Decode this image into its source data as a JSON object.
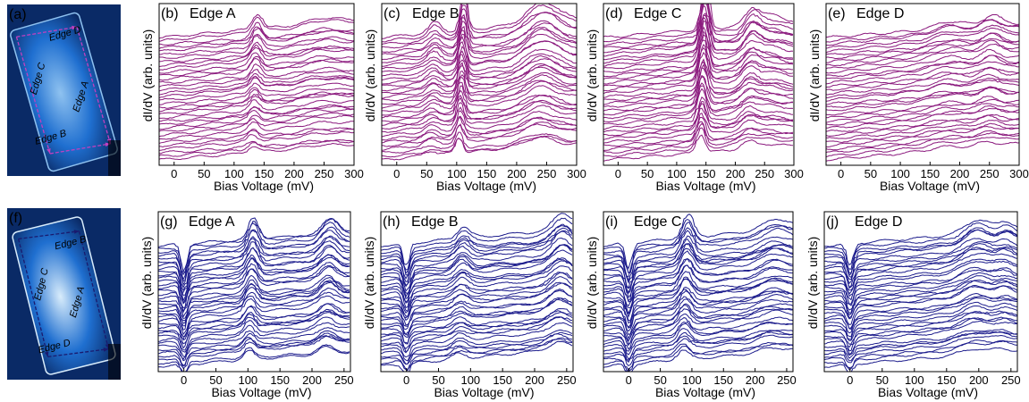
{
  "chart_data": [
    {
      "panel": "(a)",
      "type": "image",
      "kind": "stm-topograph",
      "colors": [
        "#0a2a66",
        "#1f6fd0",
        "#8fc2f0"
      ],
      "annotations": [
        "Edge A",
        "Edge B",
        "Edge C",
        "Edge D"
      ],
      "arrow_color": "#c040c0"
    },
    {
      "panel": "(b)",
      "type": "line",
      "title": "Edge A",
      "xlabel": "Bias Voltage (mV)",
      "ylabel": "dI/dV (arb. units)",
      "xlim": [
        -25,
        300
      ],
      "xticks": [
        0,
        50,
        100,
        150,
        200,
        250,
        300
      ],
      "n_series": 36,
      "color": "#8b1a7e",
      "features": [
        {
          "bias_mV": 135,
          "amp": 0.9,
          "width": 8
        },
        {
          "bias_mV": 245,
          "amp": 0.3,
          "width": 25
        }
      ]
    },
    {
      "panel": "(c)",
      "type": "line",
      "title": "Edge B",
      "xlabel": "Bias Voltage (mV)",
      "ylabel": "dI/dV (arb. units)",
      "xlim": [
        -25,
        300
      ],
      "xticks": [
        0,
        50,
        100,
        150,
        200,
        250,
        300
      ],
      "n_series": 36,
      "color": "#8b1a7e",
      "features": [
        {
          "bias_mV": 108,
          "amp": 2.0,
          "width": 6
        },
        {
          "bias_mV": 60,
          "amp": 0.6,
          "width": 10
        },
        {
          "bias_mV": 240,
          "amp": 1.2,
          "width": 25
        }
      ]
    },
    {
      "panel": "(d)",
      "type": "line",
      "title": "Edge C",
      "xlabel": "Bias Voltage (mV)",
      "ylabel": "dI/dV (arb. units)",
      "xlim": [
        -25,
        300
      ],
      "xticks": [
        0,
        50,
        100,
        150,
        200,
        250,
        300
      ],
      "n_series": 36,
      "color": "#8b1a7e",
      "features": [
        {
          "bias_mV": 145,
          "amp": 2.6,
          "width": 7
        },
        {
          "bias_mV": 225,
          "amp": 0.9,
          "width": 12
        },
        {
          "bias_mV": 255,
          "amp": 0.5,
          "width": 20
        }
      ]
    },
    {
      "panel": "(e)",
      "type": "line",
      "title": "Edge D",
      "xlabel": "Bias Voltage (mV)",
      "ylabel": "dI/dV (arb. units)",
      "xlim": [
        -25,
        300
      ],
      "xticks": [
        0,
        50,
        100,
        150,
        200,
        250,
        300
      ],
      "n_series": 36,
      "color": "#8b1a7e",
      "features": [
        {
          "bias_mV": 180,
          "amp": 0.4,
          "width": 25
        },
        {
          "bias_mV": 250,
          "amp": 0.6,
          "width": 15
        }
      ]
    },
    {
      "panel": "(f)",
      "type": "image",
      "kind": "stm-topograph",
      "colors": [
        "#0a2a66",
        "#1f6fd0",
        "#d8ecfb"
      ],
      "annotations": [
        "Edge A",
        "Edge B",
        "Edge C",
        "Edge D"
      ],
      "arrow_color": "#1a1a6e"
    },
    {
      "panel": "(g)",
      "type": "line",
      "title": "Edge A",
      "xlabel": "Bias Voltage (mV)",
      "ylabel": "dI/dV (arb. units)",
      "xlim": [
        -40,
        260
      ],
      "xticks": [
        0,
        50,
        100,
        150,
        200,
        250
      ],
      "n_series": 38,
      "color": "#1c1c8c",
      "features": [
        {
          "bias_mV": 0,
          "amp": -1.6,
          "width": 5
        },
        {
          "bias_mV": 105,
          "amp": 1.2,
          "width": 8
        },
        {
          "bias_mV": 225,
          "amp": 0.9,
          "width": 12
        }
      ]
    },
    {
      "panel": "(h)",
      "type": "line",
      "title": "Edge B",
      "xlabel": "Bias Voltage (mV)",
      "ylabel": "dI/dV (arb. units)",
      "xlim": [
        -40,
        260
      ],
      "xticks": [
        0,
        50,
        100,
        150,
        200,
        250
      ],
      "n_series": 38,
      "color": "#1c1c8c",
      "features": [
        {
          "bias_mV": 0,
          "amp": -1.4,
          "width": 5
        },
        {
          "bias_mV": 85,
          "amp": 0.7,
          "width": 10
        },
        {
          "bias_mV": 240,
          "amp": 1.0,
          "width": 14
        }
      ]
    },
    {
      "panel": "(i)",
      "type": "line",
      "title": "Edge C",
      "xlabel": "Bias Voltage (mV)",
      "ylabel": "dI/dV (arb. units)",
      "xlim": [
        -40,
        260
      ],
      "xticks": [
        0,
        50,
        100,
        150,
        200,
        250
      ],
      "n_series": 38,
      "color": "#1c1c8c",
      "features": [
        {
          "bias_mV": 0,
          "amp": -1.5,
          "width": 5
        },
        {
          "bias_mV": 90,
          "amp": 1.3,
          "width": 9
        },
        {
          "bias_mV": 230,
          "amp": 0.6,
          "width": 20
        }
      ]
    },
    {
      "panel": "(j)",
      "type": "line",
      "title": "Edge D",
      "xlabel": "Bias Voltage (mV)",
      "ylabel": "dI/dV (arb. units)",
      "xlim": [
        -40,
        260
      ],
      "xticks": [
        0,
        50,
        100,
        150,
        200,
        250
      ],
      "n_series": 38,
      "color": "#1c1c8c",
      "features": [
        {
          "bias_mV": 0,
          "amp": -1.3,
          "width": 5
        },
        {
          "bias_mV": 195,
          "amp": 0.8,
          "width": 20
        },
        {
          "bias_mV": 240,
          "amp": 0.5,
          "width": 12
        }
      ]
    }
  ]
}
